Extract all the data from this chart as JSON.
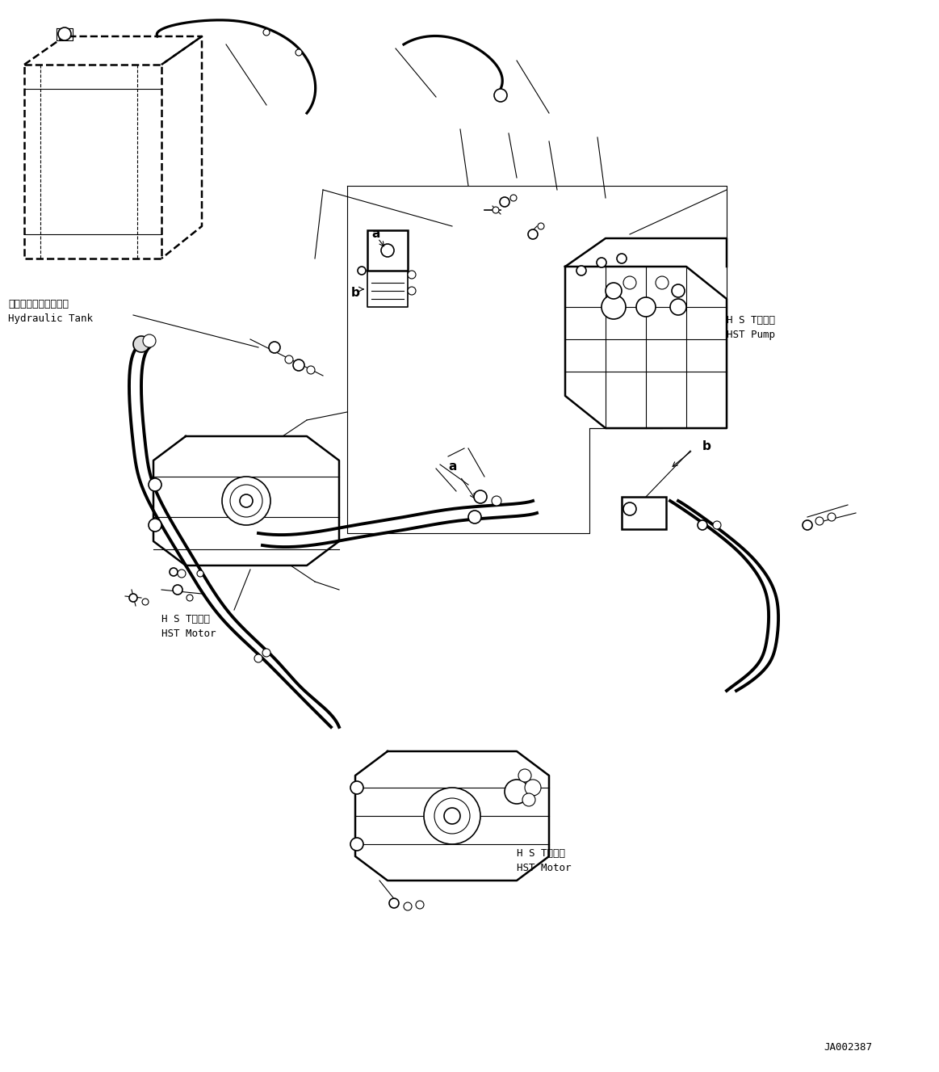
{
  "bg_color": "#ffffff",
  "line_color": "#000000",
  "fig_width": 11.63,
  "fig_height": 13.27,
  "dpi": 100,
  "labels": {
    "hydraulic_tank_jp": "ハイドロリックタンク",
    "hydraulic_tank_en": "Hydraulic Tank",
    "hst_pump_jp": "H S Tポンプ",
    "hst_pump_en": "HST Pump",
    "hst_motor1_jp": "H S Tモータ",
    "hst_motor1_en": "HST Motor",
    "hst_motor2_jp": "H S Tモータ",
    "hst_motor2_en": "HST Motor",
    "diagram_id": "JA002387",
    "label_a1": "a",
    "label_b1": "b",
    "label_a2": "a",
    "label_b2": "b"
  },
  "font_sizes": {
    "label": 9,
    "id": 9,
    "component": 9,
    "ref": 11
  }
}
